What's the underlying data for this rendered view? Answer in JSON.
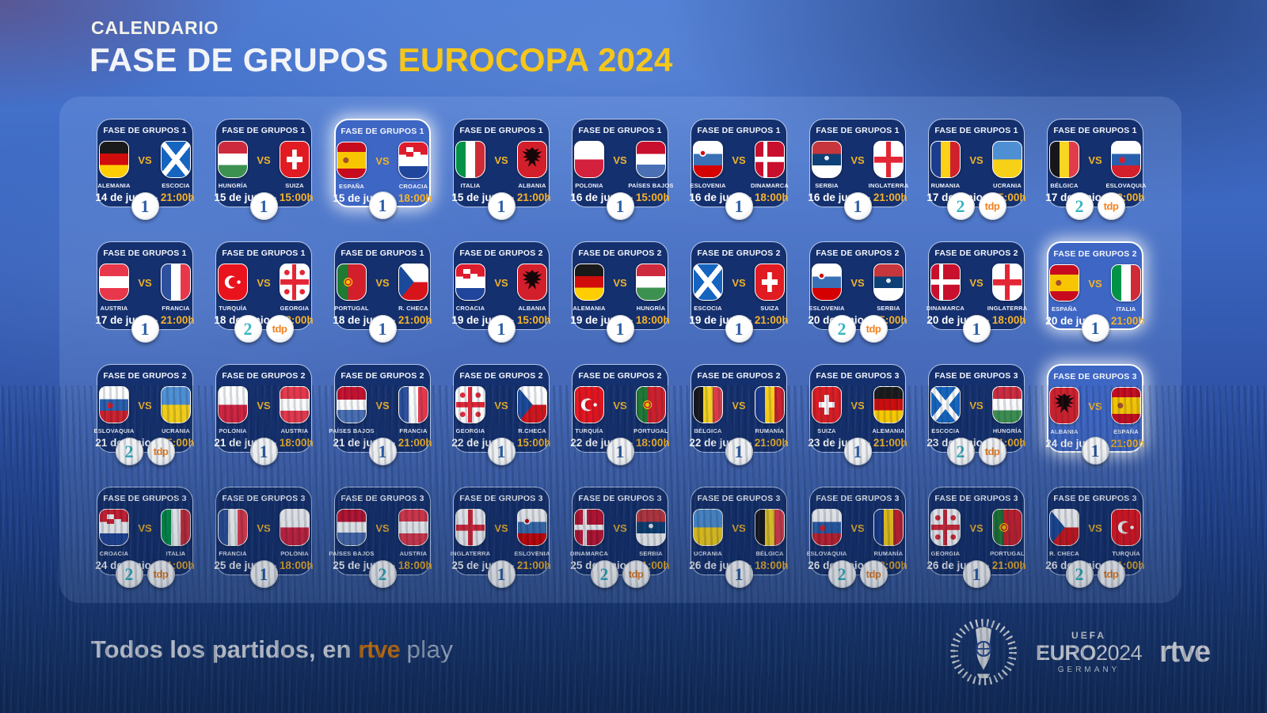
{
  "header": {
    "kicker": "CALENDARIO",
    "title_white": "FASE DE GRUPOS",
    "title_yellow": "EUROCOPA 2024"
  },
  "vs_label": "VS",
  "date_time_separator": "-",
  "channel_labels": {
    "la1": "1",
    "la2": "2",
    "tdp": "tdp"
  },
  "colors": {
    "accent_yellow": "#f5c61b",
    "time_gold": "#f5b32a",
    "card_bg": "#15306e",
    "card_highlight_bg": "#3e66c4",
    "la1_blue": "#2b5ea7",
    "la2_teal": "#3ab5c5",
    "tdp_orange": "#f28222",
    "rtve_orange": "#f28200"
  },
  "matches": [
    {
      "group_label": "FASE DE GRUPOS 1",
      "home": {
        "name": "ALEMANIA",
        "flag": "de"
      },
      "away": {
        "name": "ESCOCIA",
        "flag": "sct"
      },
      "date": "14 de junio",
      "time": "21:00h",
      "channels": [
        "la1"
      ],
      "highlight": false
    },
    {
      "group_label": "FASE DE GRUPOS 1",
      "home": {
        "name": "HUNGRÍA",
        "flag": "hu"
      },
      "away": {
        "name": "SUIZA",
        "flag": "ch"
      },
      "date": "15 de junio",
      "time": "15:00h",
      "channels": [
        "la1"
      ],
      "highlight": false
    },
    {
      "group_label": "FASE DE GRUPOS 1",
      "home": {
        "name": "ESPAÑA",
        "flag": "es"
      },
      "away": {
        "name": "CROACIA",
        "flag": "hr"
      },
      "date": "15 de junio",
      "time": "18:00h",
      "channels": [
        "la1"
      ],
      "highlight": true
    },
    {
      "group_label": "FASE DE GRUPOS 1",
      "home": {
        "name": "ITALIA",
        "flag": "it"
      },
      "away": {
        "name": "ALBANIA",
        "flag": "al"
      },
      "date": "15 de junio",
      "time": "21:00h",
      "channels": [
        "la1"
      ],
      "highlight": false
    },
    {
      "group_label": "FASE DE GRUPOS 1",
      "home": {
        "name": "POLONIA",
        "flag": "pl"
      },
      "away": {
        "name": "PAÍSES BAJOS",
        "flag": "nl"
      },
      "date": "16 de junio",
      "time": "15:00h",
      "channels": [
        "la1"
      ],
      "highlight": false
    },
    {
      "group_label": "FASE DE GRUPOS 1",
      "home": {
        "name": "ESLOVENIA",
        "flag": "si"
      },
      "away": {
        "name": "DINAMARCA",
        "flag": "dk"
      },
      "date": "16 de junio",
      "time": "18:00h",
      "channels": [
        "la1"
      ],
      "highlight": false
    },
    {
      "group_label": "FASE DE GRUPOS 1",
      "home": {
        "name": "SERBIA",
        "flag": "rs"
      },
      "away": {
        "name": "INGLATERRA",
        "flag": "en"
      },
      "date": "16 de junio",
      "time": "21:00h",
      "channels": [
        "la1"
      ],
      "highlight": false
    },
    {
      "group_label": "FASE DE GRUPOS 1",
      "home": {
        "name": "RUMANIA",
        "flag": "ro"
      },
      "away": {
        "name": "UCRANIA",
        "flag": "ua"
      },
      "date": "17 de junio",
      "time": "15:00h",
      "channels": [
        "la2",
        "tdp"
      ],
      "highlight": false
    },
    {
      "group_label": "FASE DE GRUPOS 1",
      "home": {
        "name": "BÉLGICA",
        "flag": "be"
      },
      "away": {
        "name": "ESLOVAQUIA",
        "flag": "sk"
      },
      "date": "17 de junio",
      "time": "18:00h",
      "channels": [
        "la2",
        "tdp"
      ],
      "highlight": false
    },
    {
      "group_label": "FASE DE GRUPOS 1",
      "home": {
        "name": "AUSTRIA",
        "flag": "at"
      },
      "away": {
        "name": "FRANCIA",
        "flag": "fr"
      },
      "date": "17 de junio",
      "time": "21:00h",
      "channels": [
        "la1"
      ],
      "highlight": false
    },
    {
      "group_label": "FASE DE GRUPOS 1",
      "home": {
        "name": "TURQUÍA",
        "flag": "tr"
      },
      "away": {
        "name": "GEORGIA",
        "flag": "ge"
      },
      "date": "18 de junio",
      "time": "18:00h",
      "channels": [
        "la2",
        "tdp"
      ],
      "highlight": false
    },
    {
      "group_label": "FASE DE GRUPOS 1",
      "home": {
        "name": "PORTUGAL",
        "flag": "pt"
      },
      "away": {
        "name": "R. CHECA",
        "flag": "cz"
      },
      "date": "18 de junio",
      "time": "21:00h",
      "channels": [
        "la1"
      ],
      "highlight": false
    },
    {
      "group_label": "FASE DE GRUPOS 2",
      "home": {
        "name": "CROACIA",
        "flag": "hr"
      },
      "away": {
        "name": "ALBANIA",
        "flag": "al"
      },
      "date": "19 de junio",
      "time": "15:00h",
      "channels": [
        "la1"
      ],
      "highlight": false
    },
    {
      "group_label": "FASE DE GRUPOS 2",
      "home": {
        "name": "ALEMANIA",
        "flag": "de"
      },
      "away": {
        "name": "HUNGRÍA",
        "flag": "hu"
      },
      "date": "19 de junio",
      "time": "18:00h",
      "channels": [
        "la1"
      ],
      "highlight": false
    },
    {
      "group_label": "FASE DE GRUPOS 2",
      "home": {
        "name": "ESCOCIA",
        "flag": "sct"
      },
      "away": {
        "name": "SUIZA",
        "flag": "ch"
      },
      "date": "19 de junio",
      "time": "21:00h",
      "channels": [
        "la1"
      ],
      "highlight": false
    },
    {
      "group_label": "FASE DE GRUPOS 2",
      "home": {
        "name": "ESLOVENIA",
        "flag": "si"
      },
      "away": {
        "name": "SERBIA",
        "flag": "rs"
      },
      "date": "20 de junio",
      "time": "15:00h",
      "channels": [
        "la2",
        "tdp"
      ],
      "highlight": false
    },
    {
      "group_label": "FASE DE GRUPOS 2",
      "home": {
        "name": "DINAMARCA",
        "flag": "dk"
      },
      "away": {
        "name": "INGLATERRA",
        "flag": "en"
      },
      "date": "20 de junio",
      "time": "18:00h",
      "channels": [
        "la1"
      ],
      "highlight": false
    },
    {
      "group_label": "FASE DE GRUPOS 2",
      "home": {
        "name": "ESPAÑA",
        "flag": "es"
      },
      "away": {
        "name": "ITALIA",
        "flag": "it"
      },
      "date": "20 de junio",
      "time": "21:00h",
      "channels": [
        "la1"
      ],
      "highlight": true
    },
    {
      "group_label": "FASE DE GRUPOS 2",
      "home": {
        "name": "ESLOVAQUIA",
        "flag": "sk"
      },
      "away": {
        "name": "UCRANIA",
        "flag": "ua"
      },
      "date": "21 de junio",
      "time": "15:00h",
      "channels": [
        "la2",
        "tdp"
      ],
      "highlight": false
    },
    {
      "group_label": "FASE DE GRUPOS 2",
      "home": {
        "name": "POLONIA",
        "flag": "pl"
      },
      "away": {
        "name": "AUSTRIA",
        "flag": "at"
      },
      "date": "21 de junio",
      "time": "18:00h",
      "channels": [
        "la1"
      ],
      "highlight": false
    },
    {
      "group_label": "FASE DE GRUPOS 2",
      "home": {
        "name": "PAÍSES BAJOS",
        "flag": "nl"
      },
      "away": {
        "name": "FRANCIA",
        "flag": "fr"
      },
      "date": "21 de junio",
      "time": "21:00h",
      "channels": [
        "la1"
      ],
      "highlight": false
    },
    {
      "group_label": "FASE DE GRUPOS 2",
      "home": {
        "name": "GEORGIA",
        "flag": "ge"
      },
      "away": {
        "name": "R.CHECA",
        "flag": "cz"
      },
      "date": "22 de junio",
      "time": "15:00h",
      "channels": [
        "la1"
      ],
      "highlight": false
    },
    {
      "group_label": "FASE DE GRUPOS 2",
      "home": {
        "name": "TURQUÍA",
        "flag": "tr"
      },
      "away": {
        "name": "PORTUGAL",
        "flag": "pt"
      },
      "date": "22 de junio",
      "time": "18:00h",
      "channels": [
        "la1"
      ],
      "highlight": false
    },
    {
      "group_label": "FASE DE GRUPOS 2",
      "home": {
        "name": "BÉLGICA",
        "flag": "be"
      },
      "away": {
        "name": "RUMANÍA",
        "flag": "ro"
      },
      "date": "22 de junio",
      "time": "21:00h",
      "channels": [
        "la1"
      ],
      "highlight": false
    },
    {
      "group_label": "FASE DE GRUPOS 3",
      "home": {
        "name": "SUIZA",
        "flag": "ch"
      },
      "away": {
        "name": "ALEMANIA",
        "flag": "de"
      },
      "date": "23 de junio",
      "time": "21:00h",
      "channels": [
        "la1"
      ],
      "highlight": false
    },
    {
      "group_label": "FASE DE GRUPOS 3",
      "home": {
        "name": "ESCOCIA",
        "flag": "sct"
      },
      "away": {
        "name": "HUNGRÍA",
        "flag": "hu"
      },
      "date": "23 de junio",
      "time": "21:00h",
      "channels": [
        "la2",
        "tdp"
      ],
      "highlight": false
    },
    {
      "group_label": "FASE DE GRUPOS 3",
      "home": {
        "name": "ALBANIA",
        "flag": "al"
      },
      "away": {
        "name": "ESPAÑA",
        "flag": "es"
      },
      "date": "24 de junio",
      "time": "21:00h",
      "channels": [
        "la1"
      ],
      "highlight": true
    },
    {
      "group_label": "FASE DE GRUPOS 3",
      "home": {
        "name": "CROACIA",
        "flag": "hr"
      },
      "away": {
        "name": "ITALIA",
        "flag": "it"
      },
      "date": "24 de junio",
      "time": "21:00h",
      "channels": [
        "la2",
        "tdp"
      ],
      "highlight": false
    },
    {
      "group_label": "FASE DE GRUPOS 3",
      "home": {
        "name": "FRANCIA",
        "flag": "fr"
      },
      "away": {
        "name": "POLONIA",
        "flag": "pl"
      },
      "date": "25 de junio",
      "time": "18:00h",
      "channels": [
        "la1"
      ],
      "highlight": false
    },
    {
      "group_label": "FASE DE GRUPOS 3",
      "home": {
        "name": "PAÍSES BAJOS",
        "flag": "nl"
      },
      "away": {
        "name": "AUSTRIA",
        "flag": "at"
      },
      "date": "25 de junio",
      "time": "18:00h",
      "channels": [
        "la2"
      ],
      "highlight": false
    },
    {
      "group_label": "FASE DE GRUPOS 3",
      "home": {
        "name": "INGLATERRA",
        "flag": "en"
      },
      "away": {
        "name": "ESLOVENIA",
        "flag": "si"
      },
      "date": "25 de junio",
      "time": "21:00h",
      "channels": [
        "la1"
      ],
      "highlight": false
    },
    {
      "group_label": "FASE DE GRUPOS 3",
      "home": {
        "name": "DINAMARCA",
        "flag": "dk"
      },
      "away": {
        "name": "SERBIA",
        "flag": "rs"
      },
      "date": "25 de junio",
      "time": "21:00h",
      "channels": [
        "la2",
        "tdp"
      ],
      "highlight": false
    },
    {
      "group_label": "FASE DE GRUPOS 3",
      "home": {
        "name": "UCRANIA",
        "flag": "ua"
      },
      "away": {
        "name": "BÉLGICA",
        "flag": "be"
      },
      "date": "26 de junio",
      "time": "18:00h",
      "channels": [
        "la1"
      ],
      "highlight": false
    },
    {
      "group_label": "FASE DE GRUPOS 3",
      "home": {
        "name": "ESLOVAQUIA",
        "flag": "sk"
      },
      "away": {
        "name": "RUMANÍA",
        "flag": "ro"
      },
      "date": "26 de junio",
      "time": "18:00h",
      "channels": [
        "la2",
        "tdp"
      ],
      "highlight": false
    },
    {
      "group_label": "FASE DE GRUPOS 3",
      "home": {
        "name": "GEORGIA",
        "flag": "ge"
      },
      "away": {
        "name": "PORTUGAL",
        "flag": "pt"
      },
      "date": "26 de junio",
      "time": "21:00h",
      "channels": [
        "la1"
      ],
      "highlight": false
    },
    {
      "group_label": "FASE DE GRUPOS 3",
      "home": {
        "name": "R. CHECA",
        "flag": "cz"
      },
      "away": {
        "name": "TURQUÍA",
        "flag": "tr"
      },
      "date": "26 de junio",
      "time": "21:00h",
      "channels": [
        "la2",
        "tdp"
      ],
      "highlight": false
    }
  ],
  "footer": {
    "tagline_prefix": "Todos los partidos, en ",
    "tagline_brand": "rtve",
    "tagline_suffix": "play",
    "uefa_label": "UEFA",
    "euro_word": "EURO",
    "euro_year": "2024",
    "euro_country": "GERMANY",
    "rtve_logo": "rtve"
  }
}
